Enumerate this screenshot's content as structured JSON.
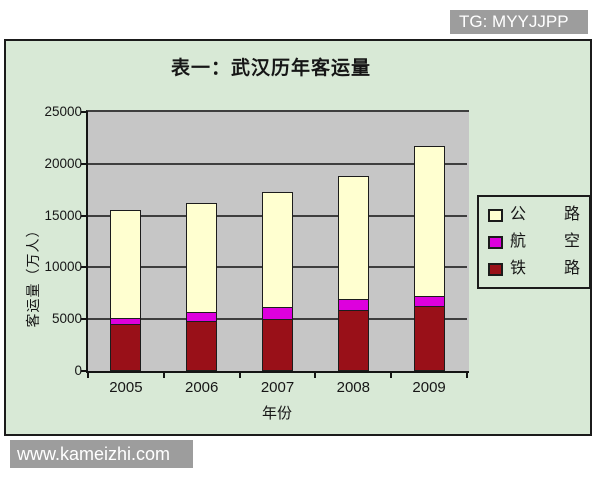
{
  "watermarks": {
    "top_right": "TG: MYYJJPP",
    "bottom_left": "www.kameizhi.com"
  },
  "chart": {
    "title": "表一：武汉历年客运量",
    "xlabel": "年份",
    "ylabel": "客运量（万人）"
  },
  "chart_data": {
    "type": "bar",
    "stacked": true,
    "title": "表一：武汉历年客运量",
    "xlabel": "年份",
    "ylabel": "客运量（万人）",
    "categories": [
      "2005",
      "2006",
      "2007",
      "2008",
      "2009"
    ],
    "series": [
      {
        "name": "铁路",
        "color": "#991018",
        "values": [
          4450,
          4750,
          4900,
          5750,
          6200
        ]
      },
      {
        "name": "航空",
        "color": "#DD00DD",
        "values": [
          600,
          850,
          1150,
          1100,
          900
        ]
      },
      {
        "name": "公路",
        "color": "#FFFFD0",
        "values": [
          10350,
          10500,
          11150,
          11850,
          14500
        ]
      }
    ],
    "totals": [
      15400,
      16100,
      17200,
      18700,
      21600
    ],
    "ylim": [
      0,
      25000
    ],
    "ytick_step": 5000,
    "yticks": [
      "0",
      "5000",
      "10000",
      "15000",
      "20000",
      "25000"
    ],
    "grid": true,
    "legend_position": "right",
    "legend_order": [
      "公路",
      "航空",
      "铁路"
    ],
    "colors": {
      "chart_bg": "#D8E9D6",
      "plot_bg": "#C6C6C6",
      "gridline": "#3E3E3E",
      "axis": "#141414",
      "watermark_bg": "#9D9D9D",
      "watermark_text": "#FFFFFF"
    }
  }
}
